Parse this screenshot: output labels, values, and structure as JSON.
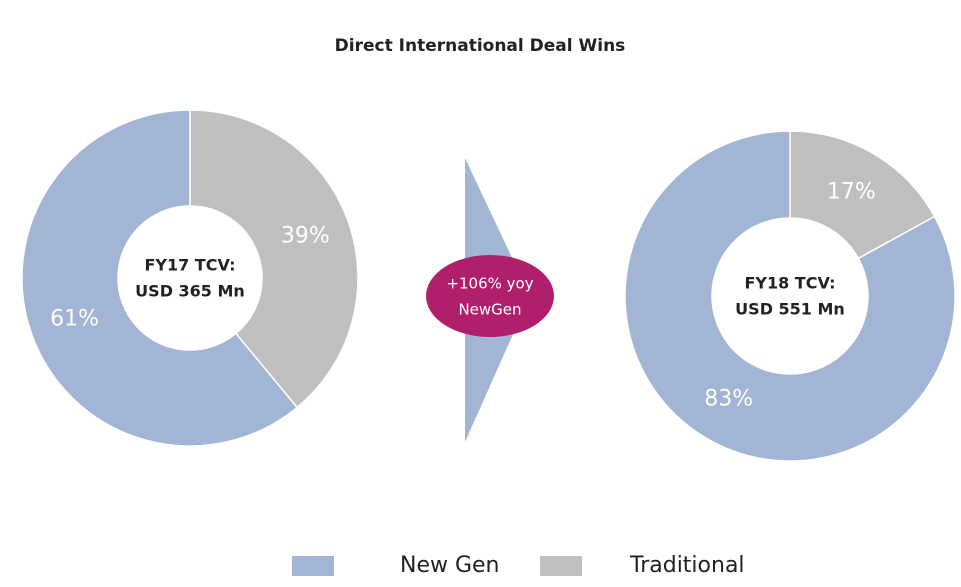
{
  "title": "Direct International Deal Wins",
  "annotation": [
    "+106% yoy",
    "NewGen"
  ],
  "chart_data": [
    {
      "type": "pie",
      "center_label": [
        "FY17 TCV:",
        "USD 365 Mn"
      ],
      "categories": [
        "New Gen",
        "Traditional"
      ],
      "values": [
        61,
        39
      ],
      "value_labels": [
        "61%",
        "39%"
      ],
      "colors": [
        "#a3b5d4",
        "#bfbfbf"
      ]
    },
    {
      "type": "pie",
      "center_label": [
        "FY18 TCV:",
        "USD 551 Mn"
      ],
      "categories": [
        "New Gen",
        "Traditional"
      ],
      "values": [
        83,
        17
      ],
      "value_labels": [
        "83%",
        "17%"
      ],
      "colors": [
        "#a3b5d4",
        "#bfbfbf"
      ]
    }
  ]
}
